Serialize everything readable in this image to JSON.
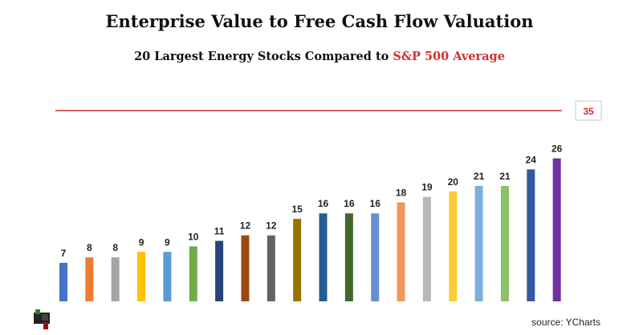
{
  "title": "Enterprise Value to Free Cash Flow Valuation",
  "subtitle": {
    "prefix": "20 Largest Energy Stocks Compared to ",
    "highlight": "S&P 500 Average"
  },
  "source": "source: YCharts",
  "chart_data": {
    "type": "bar",
    "title": "Enterprise Value to Free Cash Flow Valuation",
    "subtitle": "20 Largest Energy Stocks Compared to S&P 500 Average",
    "values": [
      7,
      8,
      8,
      9,
      9,
      10,
      11,
      12,
      12,
      15,
      16,
      16,
      16,
      18,
      19,
      20,
      21,
      21,
      24,
      26
    ],
    "colors": [
      "#4472c4",
      "#ed7d31",
      "#a5a5a5",
      "#ffc000",
      "#5b9bd5",
      "#70ad47",
      "#264478",
      "#9e480e",
      "#636363",
      "#997300",
      "#255e91",
      "#43682b",
      "#698ed0",
      "#f1975a",
      "#b7b7b7",
      "#ffcd33",
      "#7cafdd",
      "#8cc168",
      "#335aa1",
      "#7030a0"
    ],
    "reference_line": {
      "label": "35",
      "value": 35,
      "color": "#d0312d"
    },
    "xlabel": "",
    "ylabel": "",
    "ylim": [
      0,
      35
    ]
  }
}
